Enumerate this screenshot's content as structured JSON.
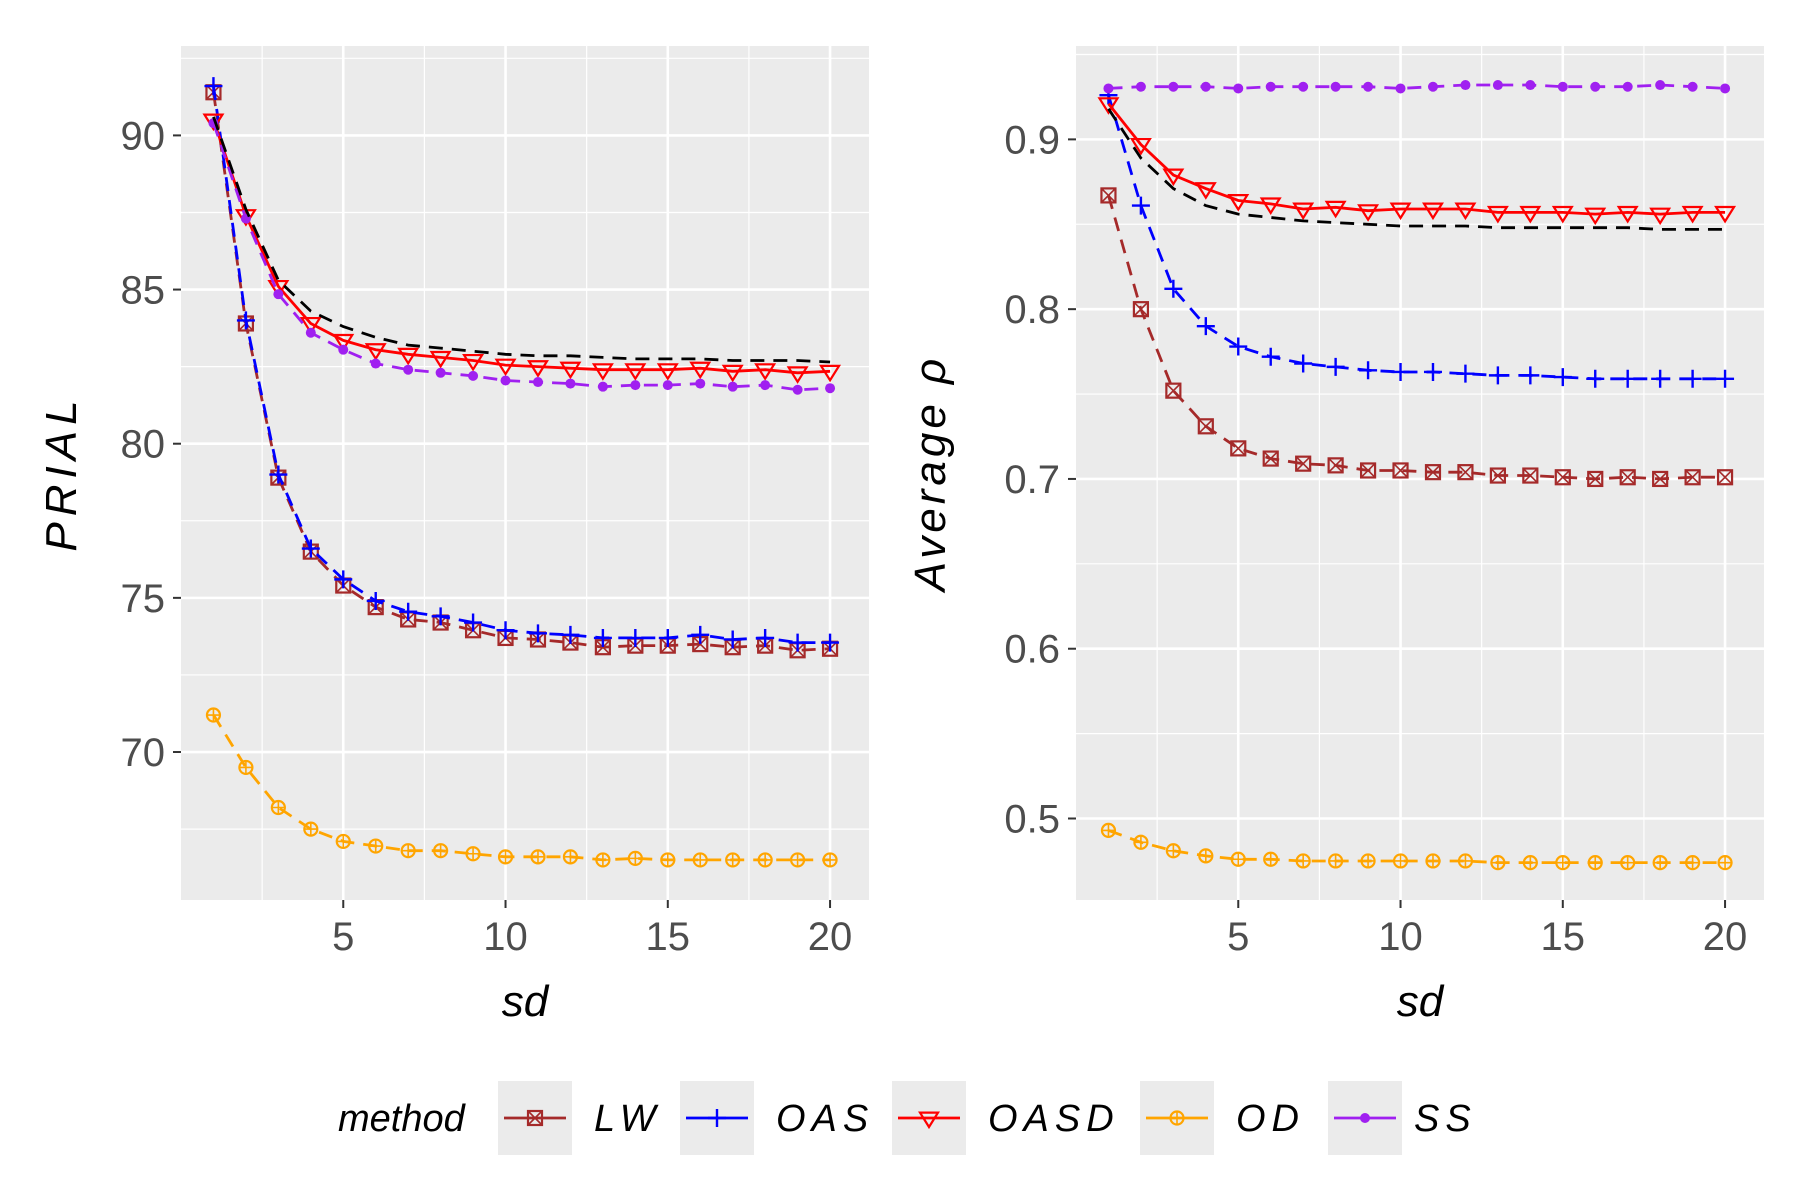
{
  "chart_data": [
    {
      "type": "line",
      "panel": "left",
      "xlabel": "sd",
      "ylabel": "PRIAL",
      "xlim": [
        0,
        21.2
      ],
      "ylim": [
        65.2,
        92.9
      ],
      "xticks": [
        5,
        10,
        15,
        20
      ],
      "yticks": [
        70,
        75,
        80,
        85,
        90
      ],
      "grid": true,
      "x": [
        1,
        2,
        3,
        4,
        5,
        6,
        7,
        8,
        9,
        10,
        11,
        12,
        13,
        14,
        15,
        16,
        17,
        18,
        19,
        20
      ],
      "series": [
        {
          "name": "LW",
          "color": "#a52a2a",
          "dash": "dashed",
          "marker": "square-x",
          "values": [
            91.4,
            83.9,
            78.9,
            76.5,
            75.4,
            74.7,
            74.3,
            74.2,
            73.95,
            73.7,
            73.65,
            73.55,
            73.4,
            73.45,
            73.45,
            73.5,
            73.4,
            73.45,
            73.3,
            73.35
          ]
        },
        {
          "name": "OAS",
          "color": "#0000ff",
          "dash": "dashed",
          "marker": "plus",
          "values": [
            91.6,
            84.0,
            79.0,
            76.6,
            75.6,
            74.9,
            74.55,
            74.4,
            74.2,
            73.95,
            73.85,
            73.8,
            73.7,
            73.7,
            73.7,
            73.8,
            73.65,
            73.7,
            73.55,
            73.55
          ]
        },
        {
          "name": "OASD",
          "color": "#ff0000",
          "dash": "solid",
          "marker": "triangle-down",
          "values": [
            90.5,
            87.4,
            85.1,
            83.9,
            83.35,
            83.05,
            82.9,
            82.8,
            82.7,
            82.55,
            82.5,
            82.45,
            82.4,
            82.4,
            82.4,
            82.45,
            82.35,
            82.4,
            82.3,
            82.35
          ]
        },
        {
          "name": "OD",
          "color": "#ffa500",
          "dash": "dashed",
          "marker": "circle-plus",
          "values": [
            71.2,
            69.5,
            68.2,
            67.5,
            67.1,
            66.95,
            66.8,
            66.8,
            66.7,
            66.6,
            66.6,
            66.6,
            66.5,
            66.55,
            66.5,
            66.5,
            66.5,
            66.5,
            66.5,
            66.5
          ]
        },
        {
          "name": "SS",
          "color": "#a020f0",
          "dash": "dashed",
          "marker": "dot",
          "values": [
            90.4,
            87.3,
            84.85,
            83.6,
            83.05,
            82.6,
            82.4,
            82.3,
            82.2,
            82.05,
            82.0,
            81.95,
            81.85,
            81.9,
            81.9,
            81.95,
            81.85,
            81.9,
            81.75,
            81.8
          ]
        },
        {
          "name": "",
          "color": "#000000",
          "dash": "dashed",
          "marker": "none",
          "values": [
            90.6,
            87.6,
            85.3,
            84.3,
            83.8,
            83.45,
            83.2,
            83.1,
            83.0,
            82.9,
            82.85,
            82.85,
            82.8,
            82.75,
            82.75,
            82.75,
            82.7,
            82.7,
            82.7,
            82.65
          ]
        }
      ]
    },
    {
      "type": "line",
      "panel": "right",
      "xlabel": "sd",
      "ylabel": "Average ρ",
      "xlim": [
        0,
        21.2
      ],
      "ylim": [
        0.452,
        0.955
      ],
      "xticks": [
        5,
        10,
        15,
        20
      ],
      "yticks": [
        0.5,
        0.6,
        0.7,
        0.8,
        0.9
      ],
      "ytick_labels": [
        "0.5",
        "0.6",
        "0.7",
        "0.8",
        "0.9"
      ],
      "grid": true,
      "x": [
        1,
        2,
        3,
        4,
        5,
        6,
        7,
        8,
        9,
        10,
        11,
        12,
        13,
        14,
        15,
        16,
        17,
        18,
        19,
        20
      ],
      "series": [
        {
          "name": "LW",
          "color": "#a52a2a",
          "dash": "dashed",
          "marker": "square-x",
          "values": [
            0.867,
            0.8,
            0.752,
            0.731,
            0.718,
            0.712,
            0.709,
            0.708,
            0.705,
            0.705,
            0.704,
            0.704,
            0.702,
            0.702,
            0.701,
            0.7,
            0.701,
            0.7,
            0.701,
            0.701
          ]
        },
        {
          "name": "OAS",
          "color": "#0000ff",
          "dash": "dashed",
          "marker": "plus",
          "values": [
            0.926,
            0.861,
            0.812,
            0.79,
            0.778,
            0.772,
            0.768,
            0.766,
            0.764,
            0.763,
            0.763,
            0.762,
            0.761,
            0.761,
            0.76,
            0.759,
            0.759,
            0.759,
            0.759,
            0.759
          ]
        },
        {
          "name": "OASD",
          "color": "#ff0000",
          "dash": "solid",
          "marker": "triangle-down",
          "values": [
            0.921,
            0.897,
            0.879,
            0.871,
            0.864,
            0.862,
            0.859,
            0.86,
            0.858,
            0.859,
            0.859,
            0.859,
            0.857,
            0.857,
            0.857,
            0.856,
            0.857,
            0.856,
            0.857,
            0.857
          ]
        },
        {
          "name": "OD",
          "color": "#ffa500",
          "dash": "dashed",
          "marker": "circle-plus",
          "values": [
            0.493,
            0.486,
            0.481,
            0.478,
            0.476,
            0.476,
            0.475,
            0.475,
            0.475,
            0.475,
            0.475,
            0.475,
            0.474,
            0.474,
            0.474,
            0.474,
            0.474,
            0.474,
            0.474,
            0.474
          ]
        },
        {
          "name": "SS",
          "color": "#a020f0",
          "dash": "dashed",
          "marker": "dot",
          "values": [
            0.93,
            0.931,
            0.931,
            0.931,
            0.93,
            0.931,
            0.931,
            0.931,
            0.931,
            0.93,
            0.931,
            0.932,
            0.932,
            0.932,
            0.931,
            0.931,
            0.931,
            0.932,
            0.931,
            0.93
          ]
        },
        {
          "name": "",
          "color": "#000000",
          "dash": "dashed",
          "marker": "none",
          "values": [
            0.918,
            0.889,
            0.871,
            0.861,
            0.856,
            0.854,
            0.852,
            0.851,
            0.85,
            0.849,
            0.849,
            0.849,
            0.848,
            0.848,
            0.848,
            0.848,
            0.848,
            0.847,
            0.847,
            0.847
          ]
        }
      ]
    }
  ],
  "legend": {
    "title": "method",
    "placement": "bottom",
    "entries": [
      {
        "label": "LW",
        "color": "#a52a2a",
        "marker": "square-x",
        "dash": "dashed"
      },
      {
        "label": "OAS",
        "color": "#0000ff",
        "marker": "plus",
        "dash": "dashed"
      },
      {
        "label": "OASD",
        "color": "#ff0000",
        "marker": "triangle-down",
        "dash": "solid"
      },
      {
        "label": "OD",
        "color": "#ffa500",
        "marker": "circle-plus",
        "dash": "dashed"
      },
      {
        "label": "SS",
        "color": "#a020f0",
        "marker": "dot",
        "dash": "dashed"
      }
    ]
  },
  "colors": {
    "panel_background": "#ebebeb",
    "grid": "#ffffff",
    "tick_text": "#4d4d4d"
  }
}
